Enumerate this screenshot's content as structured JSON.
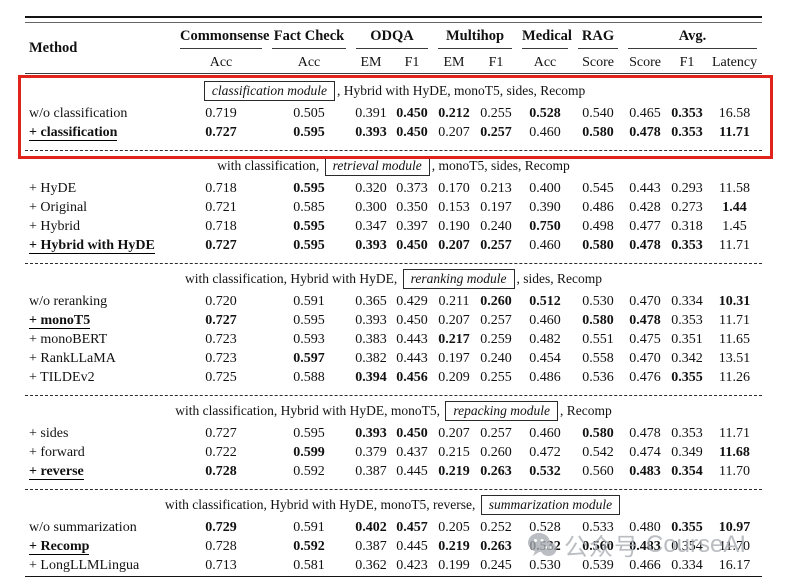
{
  "annotation": {
    "highlight_box_color": "#e0241c"
  },
  "watermark": {
    "icon": "wechat-icon",
    "text": "公众号",
    "brand": "CourseAI"
  },
  "table": {
    "header": {
      "method": "Method",
      "groups": [
        {
          "label": "Commonsense",
          "span": 1
        },
        {
          "label": "Fact Check",
          "span": 1
        },
        {
          "label": "ODQA",
          "span": 2
        },
        {
          "label": "Multihop",
          "span": 2
        },
        {
          "label": "Medical",
          "span": 1
        },
        {
          "label": "RAG",
          "span": 1
        },
        {
          "label": "Avg.",
          "span": 3
        }
      ],
      "subheaders": [
        "Acc",
        "Acc",
        "EM",
        "F1",
        "EM",
        "F1",
        "Acc",
        "Score",
        "Score",
        "F1",
        "Latency"
      ]
    },
    "sections": [
      {
        "header": {
          "prefix": "",
          "box": "classification module",
          "suffix": ", Hybrid with HyDE, monoT5, sides, Recomp"
        },
        "highlighted": true,
        "rows": [
          {
            "method": "w/o classification",
            "best": false,
            "values": [
              "0.719",
              "0.505",
              "0.391",
              "0.450",
              "0.212",
              "0.255",
              "0.528",
              "0.540",
              "0.465",
              "0.353",
              "16.58"
            ],
            "bold": [
              0,
              0,
              0,
              1,
              1,
              0,
              1,
              0,
              0,
              1,
              0
            ]
          },
          {
            "method": "+ classification",
            "best": true,
            "values": [
              "0.727",
              "0.595",
              "0.393",
              "0.450",
              "0.207",
              "0.257",
              "0.460",
              "0.580",
              "0.478",
              "0.353",
              "11.71"
            ],
            "bold": [
              1,
              1,
              1,
              1,
              0,
              1,
              0,
              1,
              1,
              1,
              1
            ]
          }
        ]
      },
      {
        "header": {
          "prefix": "with classification, ",
          "box": "retrieval module",
          "suffix": ", monoT5, sides, Recomp"
        },
        "highlighted": false,
        "rows": [
          {
            "method": "+ HyDE",
            "best": false,
            "values": [
              "0.718",
              "0.595",
              "0.320",
              "0.373",
              "0.170",
              "0.213",
              "0.400",
              "0.545",
              "0.443",
              "0.293",
              "11.58"
            ],
            "bold": [
              0,
              1,
              0,
              0,
              0,
              0,
              0,
              0,
              0,
              0,
              0
            ]
          },
          {
            "method": "+ Original",
            "best": false,
            "values": [
              "0.721",
              "0.585",
              "0.300",
              "0.350",
              "0.153",
              "0.197",
              "0.390",
              "0.486",
              "0.428",
              "0.273",
              "1.44"
            ],
            "bold": [
              0,
              0,
              0,
              0,
              0,
              0,
              0,
              0,
              0,
              0,
              1
            ]
          },
          {
            "method": "+ Hybrid",
            "best": false,
            "values": [
              "0.718",
              "0.595",
              "0.347",
              "0.397",
              "0.190",
              "0.240",
              "0.750",
              "0.498",
              "0.477",
              "0.318",
              "1.45"
            ],
            "bold": [
              0,
              1,
              0,
              0,
              0,
              0,
              1,
              0,
              0,
              0,
              0
            ]
          },
          {
            "method": "+ Hybrid with HyDE",
            "best": true,
            "values": [
              "0.727",
              "0.595",
              "0.393",
              "0.450",
              "0.207",
              "0.257",
              "0.460",
              "0.580",
              "0.478",
              "0.353",
              "11.71"
            ],
            "bold": [
              1,
              1,
              1,
              1,
              1,
              1,
              0,
              1,
              1,
              1,
              0
            ]
          }
        ]
      },
      {
        "header": {
          "prefix": "with classification, Hybrid with HyDE, ",
          "box": "reranking module",
          "suffix": ", sides, Recomp"
        },
        "highlighted": false,
        "rows": [
          {
            "method": "w/o reranking",
            "best": false,
            "values": [
              "0.720",
              "0.591",
              "0.365",
              "0.429",
              "0.211",
              "0.260",
              "0.512",
              "0.530",
              "0.470",
              "0.334",
              "10.31"
            ],
            "bold": [
              0,
              0,
              0,
              0,
              0,
              1,
              1,
              0,
              0,
              0,
              1
            ]
          },
          {
            "method": "+ monoT5",
            "best": true,
            "values": [
              "0.727",
              "0.595",
              "0.393",
              "0.450",
              "0.207",
              "0.257",
              "0.460",
              "0.580",
              "0.478",
              "0.353",
              "11.71"
            ],
            "bold": [
              1,
              0,
              0,
              0,
              0,
              0,
              0,
              1,
              1,
              0,
              0
            ]
          },
          {
            "method": "+ monoBERT",
            "best": false,
            "values": [
              "0.723",
              "0.593",
              "0.383",
              "0.443",
              "0.217",
              "0.259",
              "0.482",
              "0.551",
              "0.475",
              "0.351",
              "11.65"
            ],
            "bold": [
              0,
              0,
              0,
              0,
              1,
              0,
              0,
              0,
              0,
              0,
              0
            ]
          },
          {
            "method": "+ RankLLaMA",
            "best": false,
            "values": [
              "0.723",
              "0.597",
              "0.382",
              "0.443",
              "0.197",
              "0.240",
              "0.454",
              "0.558",
              "0.470",
              "0.342",
              "13.51"
            ],
            "bold": [
              0,
              1,
              0,
              0,
              0,
              0,
              0,
              0,
              0,
              0,
              0
            ]
          },
          {
            "method": "+ TILDEv2",
            "best": false,
            "values": [
              "0.725",
              "0.588",
              "0.394",
              "0.456",
              "0.209",
              "0.255",
              "0.486",
              "0.536",
              "0.476",
              "0.355",
              "11.26"
            ],
            "bold": [
              0,
              0,
              1,
              1,
              0,
              0,
              0,
              0,
              0,
              1,
              0
            ]
          }
        ]
      },
      {
        "header": {
          "prefix": "with classification, Hybrid with HyDE, monoT5, ",
          "box": "repacking module",
          "suffix": ", Recomp"
        },
        "highlighted": false,
        "rows": [
          {
            "method": "+ sides",
            "best": false,
            "values": [
              "0.727",
              "0.595",
              "0.393",
              "0.450",
              "0.207",
              "0.257",
              "0.460",
              "0.580",
              "0.478",
              "0.353",
              "11.71"
            ],
            "bold": [
              0,
              0,
              1,
              1,
              0,
              0,
              0,
              1,
              0,
              0,
              0
            ]
          },
          {
            "method": "+ forward",
            "best": false,
            "values": [
              "0.722",
              "0.599",
              "0.379",
              "0.437",
              "0.215",
              "0.260",
              "0.472",
              "0.542",
              "0.474",
              "0.349",
              "11.68"
            ],
            "bold": [
              0,
              1,
              0,
              0,
              0,
              0,
              0,
              0,
              0,
              0,
              1
            ]
          },
          {
            "method": "+ reverse",
            "best": true,
            "values": [
              "0.728",
              "0.592",
              "0.387",
              "0.445",
              "0.219",
              "0.263",
              "0.532",
              "0.560",
              "0.483",
              "0.354",
              "11.70"
            ],
            "bold": [
              1,
              0,
              0,
              0,
              1,
              1,
              1,
              0,
              1,
              1,
              0
            ]
          }
        ]
      },
      {
        "header": {
          "prefix": "with classification, Hybrid with HyDE, monoT5, reverse, ",
          "box": "summarization module",
          "suffix": ""
        },
        "highlighted": false,
        "rows": [
          {
            "method": "w/o summarization",
            "best": false,
            "values": [
              "0.729",
              "0.591",
              "0.402",
              "0.457",
              "0.205",
              "0.252",
              "0.528",
              "0.533",
              "0.480",
              "0.355",
              "10.97"
            ],
            "bold": [
              1,
              0,
              1,
              1,
              0,
              0,
              0,
              0,
              0,
              1,
              1
            ]
          },
          {
            "method": "+ Recomp",
            "best": true,
            "values": [
              "0.728",
              "0.592",
              "0.387",
              "0.445",
              "0.219",
              "0.263",
              "0.532",
              "0.560",
              "0.483",
              "0.354",
              "11.70"
            ],
            "bold": [
              0,
              1,
              0,
              0,
              1,
              1,
              1,
              1,
              1,
              0,
              0
            ]
          },
          {
            "method": "+ LongLLMLingua",
            "best": false,
            "values": [
              "0.713",
              "0.581",
              "0.362",
              "0.423",
              "0.199",
              "0.245",
              "0.530",
              "0.539",
              "0.466",
              "0.334",
              "16.17"
            ],
            "bold": [
              0,
              0,
              0,
              0,
              0,
              0,
              0,
              0,
              0,
              0,
              0
            ]
          }
        ]
      }
    ]
  }
}
